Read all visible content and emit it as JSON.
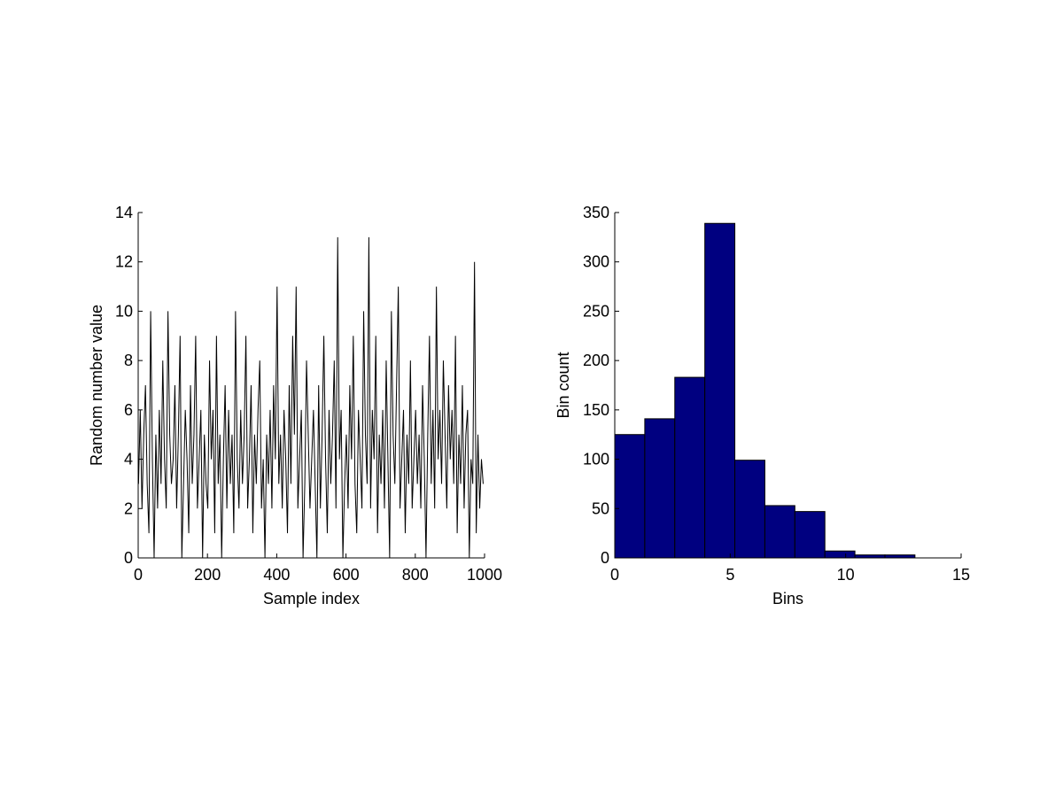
{
  "chart_data": [
    {
      "type": "line",
      "xlabel": "Sample index",
      "ylabel": "Random number value",
      "color": "#000000",
      "x": [
        1,
        6,
        11,
        16,
        21,
        26,
        31,
        36,
        41,
        46,
        51,
        56,
        61,
        66,
        71,
        76,
        81,
        86,
        91,
        96,
        101,
        106,
        111,
        116,
        121,
        126,
        131,
        136,
        141,
        146,
        151,
        156,
        161,
        166,
        171,
        176,
        181,
        186,
        191,
        196,
        201,
        206,
        211,
        216,
        221,
        226,
        231,
        236,
        241,
        246,
        251,
        256,
        261,
        266,
        271,
        276,
        281,
        286,
        291,
        296,
        301,
        306,
        311,
        316,
        321,
        326,
        331,
        336,
        341,
        346,
        351,
        356,
        361,
        366,
        371,
        376,
        381,
        386,
        391,
        396,
        401,
        406,
        411,
        416,
        421,
        426,
        431,
        436,
        441,
        446,
        451,
        456,
        461,
        466,
        471,
        476,
        481,
        486,
        491,
        496,
        501,
        506,
        511,
        516,
        521,
        526,
        531,
        536,
        541,
        546,
        551,
        556,
        561,
        566,
        571,
        576,
        581,
        586,
        591,
        596,
        601,
        606,
        611,
        616,
        621,
        626,
        631,
        636,
        641,
        646,
        651,
        656,
        661,
        666,
        671,
        676,
        681,
        686,
        691,
        696,
        701,
        706,
        711,
        716,
        721,
        726,
        731,
        736,
        741,
        746,
        751,
        756,
        761,
        766,
        771,
        776,
        781,
        786,
        791,
        796,
        801,
        806,
        811,
        816,
        821,
        826,
        831,
        836,
        841,
        846,
        851,
        856,
        861,
        866,
        871,
        876,
        881,
        886,
        891,
        896,
        901,
        906,
        911,
        916,
        921,
        926,
        931,
        936,
        941,
        946,
        951,
        956,
        961,
        966,
        971,
        976,
        981,
        986,
        991,
        996
      ],
      "values": [
        3,
        6,
        2,
        5,
        7,
        3,
        1,
        10,
        4,
        0,
        5,
        2,
        6,
        3,
        8,
        4,
        2,
        10,
        5,
        3,
        4,
        7,
        2,
        5,
        9,
        0,
        3,
        6,
        4,
        1,
        7,
        3,
        5,
        9,
        2,
        4,
        6,
        0,
        5,
        3,
        2,
        8,
        4,
        6,
        1,
        9,
        3,
        5,
        0,
        4,
        7,
        2,
        6,
        3,
        5,
        1,
        10,
        4,
        2,
        6,
        3,
        5,
        9,
        2,
        4,
        7,
        1,
        5,
        3,
        6,
        8,
        2,
        4,
        0,
        5,
        3,
        6,
        2,
        7,
        4,
        11,
        3,
        5,
        2,
        6,
        4,
        1,
        7,
        3,
        9,
        5,
        11,
        2,
        4,
        6,
        0,
        3,
        8,
        5,
        2,
        4,
        6,
        3,
        0,
        7,
        2,
        5,
        9,
        4,
        1,
        6,
        3,
        5,
        8,
        2,
        13,
        4,
        6,
        0,
        3,
        5,
        2,
        7,
        4,
        9,
        3,
        1,
        6,
        4,
        2,
        10,
        5,
        3,
        13,
        2,
        6,
        4,
        9,
        1,
        5,
        3,
        6,
        2,
        8,
        4,
        0,
        10,
        5,
        3,
        7,
        11,
        2,
        4,
        6,
        1,
        5,
        3,
        8,
        2,
        4,
        6,
        3,
        5,
        2,
        7,
        4,
        0,
        5,
        9,
        3,
        6,
        2,
        11,
        4,
        6,
        3,
        8,
        5,
        2,
        7,
        4,
        6,
        3,
        9,
        1,
        5,
        3,
        7,
        2,
        5,
        6,
        0,
        4,
        3,
        12,
        1,
        5,
        2,
        4,
        3
      ],
      "xlim": [
        0,
        1000
      ],
      "ylim": [
        0,
        14
      ],
      "xticks": [
        0,
        200,
        400,
        600,
        800,
        1000
      ],
      "yticks": [
        0,
        2,
        4,
        6,
        8,
        10,
        12,
        14
      ]
    },
    {
      "type": "histogram",
      "xlabel": "Bins",
      "ylabel": "Bin count",
      "color": "#000080",
      "bins": [
        0,
        1.3,
        2.6,
        3.9,
        5.2,
        6.5,
        7.8,
        9.1,
        10.4,
        11.7,
        13
      ],
      "values": [
        125,
        141,
        183,
        339,
        99,
        53,
        47,
        7,
        3,
        3
      ],
      "xlim": [
        0,
        15
      ],
      "ylim": [
        0,
        350
      ],
      "xticks": [
        0,
        5,
        10,
        15
      ],
      "yticks": [
        0,
        50,
        100,
        150,
        200,
        250,
        300,
        350
      ]
    }
  ]
}
